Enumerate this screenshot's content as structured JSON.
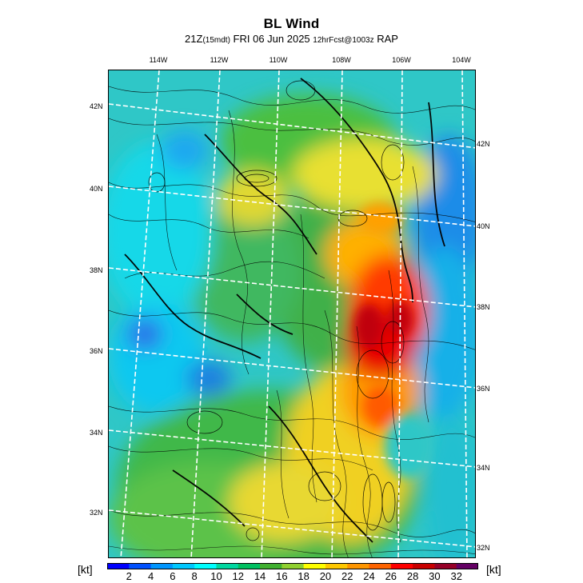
{
  "title": "BL Wind",
  "subtitle": {
    "time": "21Z",
    "local_time": "(15mdt)",
    "date": "FRI 06 Jun 2025",
    "forecast": "12hrFcst@1003z",
    "model": "RAP"
  },
  "longitude_labels": [
    "114W",
    "112W",
    "110W",
    "108W",
    "106W",
    "104W"
  ],
  "latitude_labels_left": [
    "42N",
    "40N",
    "38N",
    "36N",
    "34N",
    "32N"
  ],
  "latitude_labels_right": [
    "42N",
    "40N",
    "38N",
    "36N",
    "34N",
    "32N"
  ],
  "colorbar": {
    "unit_left": "[kt]",
    "unit_right": "[kt]",
    "tick_labels": [
      "2",
      "4",
      "6",
      "8",
      "10",
      "12",
      "14",
      "16",
      "18",
      "20",
      "22",
      "24",
      "26",
      "28",
      "30",
      "32"
    ],
    "colors": [
      "#0000ff",
      "#0050ff",
      "#0096ff",
      "#00c8ff",
      "#00ffff",
      "#00d8a0",
      "#00c060",
      "#40b030",
      "#90d030",
      "#ffff00",
      "#ffc800",
      "#ff9600",
      "#ff6400",
      "#ff0000",
      "#c80000",
      "#960028",
      "#640064"
    ]
  }
}
